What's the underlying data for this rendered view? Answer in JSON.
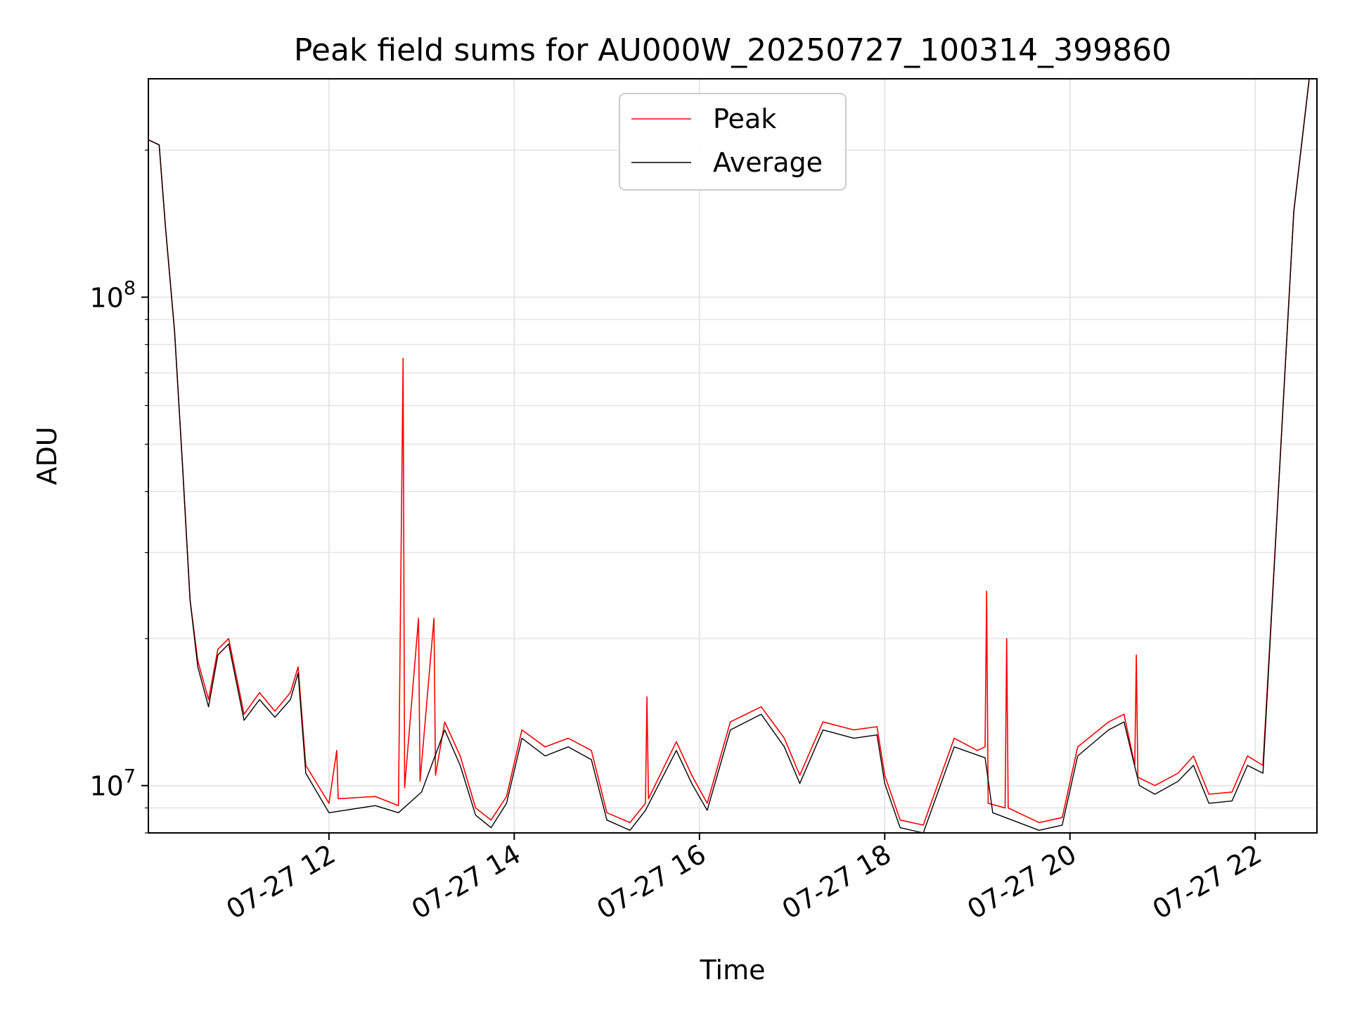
{
  "chart_data": {
    "type": "line",
    "title": "Peak field sums for AU000W_20250727_100314_399860",
    "xlabel": "Time",
    "ylabel": "ADU",
    "yscale": "log",
    "xlim": [
      "2025-07-27 10:03",
      "2025-07-27 22:40"
    ],
    "ylim": [
      8000000,
      280000000
    ],
    "x_ticks": [
      {
        "t": "2025-07-27 12:00",
        "label": "07-27 12"
      },
      {
        "t": "2025-07-27 14:00",
        "label": "07-27 14"
      },
      {
        "t": "2025-07-27 16:00",
        "label": "07-27 16"
      },
      {
        "t": "2025-07-27 18:00",
        "label": "07-27 18"
      },
      {
        "t": "2025-07-27 20:00",
        "label": "07-27 20"
      },
      {
        "t": "2025-07-27 22:00",
        "label": "07-27 22"
      }
    ],
    "y_ticks": [
      {
        "value": 10000000,
        "base": "10",
        "exp": "7"
      },
      {
        "value": 100000000,
        "base": "10",
        "exp": "8"
      }
    ],
    "grid": true,
    "legend_position": "top-center",
    "colors": {
      "peak": "#ff0000",
      "average": "#000000"
    },
    "series": [
      {
        "name": "Peak",
        "color": "#ff0000",
        "points": [
          [
            "2025-07-27 10:03",
            210000000
          ],
          [
            "2025-07-27 10:10",
            205000000
          ],
          [
            "2025-07-27 10:14",
            140000000
          ],
          [
            "2025-07-27 10:20",
            85000000
          ],
          [
            "2025-07-27 10:25",
            46000000
          ],
          [
            "2025-07-27 10:30",
            24000000
          ],
          [
            "2025-07-27 10:35",
            18000000
          ],
          [
            "2025-07-27 10:42",
            15000000
          ],
          [
            "2025-07-27 10:48",
            19000000
          ],
          [
            "2025-07-27 10:55",
            20000000
          ],
          [
            "2025-07-27 11:05",
            14000000
          ],
          [
            "2025-07-27 11:15",
            15500000
          ],
          [
            "2025-07-27 11:25",
            14200000
          ],
          [
            "2025-07-27 11:35",
            15500000
          ],
          [
            "2025-07-27 11:40",
            17500000
          ],
          [
            "2025-07-27 11:45",
            11000000
          ],
          [
            "2025-07-27 12:00",
            9200000
          ],
          [
            "2025-07-27 12:05",
            11800000
          ],
          [
            "2025-07-27 12:06",
            9400000
          ],
          [
            "2025-07-27 12:30",
            9500000
          ],
          [
            "2025-07-27 12:45",
            9100000
          ],
          [
            "2025-07-27 12:48",
            75000000
          ],
          [
            "2025-07-27 12:49",
            9900000
          ],
          [
            "2025-07-27 12:58",
            22000000
          ],
          [
            "2025-07-27 12:59",
            10200000
          ],
          [
            "2025-07-27 13:08",
            22000000
          ],
          [
            "2025-07-27 13:09",
            10500000
          ],
          [
            "2025-07-27 13:15",
            13500000
          ],
          [
            "2025-07-27 13:25",
            11500000
          ],
          [
            "2025-07-27 13:35",
            9000000
          ],
          [
            "2025-07-27 13:45",
            8500000
          ],
          [
            "2025-07-27 13:55",
            9500000
          ],
          [
            "2025-07-27 14:05",
            13000000
          ],
          [
            "2025-07-27 14:20",
            12000000
          ],
          [
            "2025-07-27 14:35",
            12500000
          ],
          [
            "2025-07-27 14:50",
            11800000
          ],
          [
            "2025-07-27 15:00",
            8800000
          ],
          [
            "2025-07-27 15:15",
            8400000
          ],
          [
            "2025-07-27 15:25",
            9200000
          ],
          [
            "2025-07-27 15:26",
            15200000
          ],
          [
            "2025-07-27 15:27",
            9400000
          ],
          [
            "2025-07-27 15:45",
            12300000
          ],
          [
            "2025-07-27 15:55",
            10500000
          ],
          [
            "2025-07-27 16:05",
            9200000
          ],
          [
            "2025-07-27 16:20",
            13500000
          ],
          [
            "2025-07-27 16:40",
            14500000
          ],
          [
            "2025-07-27 16:55",
            12500000
          ],
          [
            "2025-07-27 17:05",
            10500000
          ],
          [
            "2025-07-27 17:20",
            13500000
          ],
          [
            "2025-07-27 17:40",
            13000000
          ],
          [
            "2025-07-27 17:55",
            13200000
          ],
          [
            "2025-07-27 18:00",
            10500000
          ],
          [
            "2025-07-27 18:10",
            8500000
          ],
          [
            "2025-07-27 18:25",
            8300000
          ],
          [
            "2025-07-27 18:45",
            12500000
          ],
          [
            "2025-07-27 19:00",
            11800000
          ],
          [
            "2025-07-27 19:05",
            12000000
          ],
          [
            "2025-07-27 19:06",
            25000000
          ],
          [
            "2025-07-27 19:07",
            9200000
          ],
          [
            "2025-07-27 19:18",
            9000000
          ],
          [
            "2025-07-27 19:19",
            20000000
          ],
          [
            "2025-07-27 19:20",
            9000000
          ],
          [
            "2025-07-27 19:40",
            8400000
          ],
          [
            "2025-07-27 19:55",
            8600000
          ],
          [
            "2025-07-27 20:05",
            12000000
          ],
          [
            "2025-07-27 20:25",
            13500000
          ],
          [
            "2025-07-27 20:35",
            14000000
          ],
          [
            "2025-07-27 20:42",
            11000000
          ],
          [
            "2025-07-27 20:43",
            18500000
          ],
          [
            "2025-07-27 20:44",
            10400000
          ],
          [
            "2025-07-27 20:55",
            10000000
          ],
          [
            "2025-07-27 21:10",
            10600000
          ],
          [
            "2025-07-27 21:20",
            11500000
          ],
          [
            "2025-07-27 21:30",
            9600000
          ],
          [
            "2025-07-27 21:45",
            9700000
          ],
          [
            "2025-07-27 21:55",
            11500000
          ],
          [
            "2025-07-27 22:05",
            11000000
          ],
          [
            "2025-07-27 22:15",
            40000000
          ],
          [
            "2025-07-27 22:25",
            150000000
          ],
          [
            "2025-07-27 22:35",
            280000000
          ]
        ]
      },
      {
        "name": "Average",
        "color": "#000000",
        "points": [
          [
            "2025-07-27 10:03",
            210000000
          ],
          [
            "2025-07-27 10:10",
            205000000
          ],
          [
            "2025-07-27 10:14",
            140000000
          ],
          [
            "2025-07-27 10:20",
            85000000
          ],
          [
            "2025-07-27 10:25",
            46000000
          ],
          [
            "2025-07-27 10:30",
            24000000
          ],
          [
            "2025-07-27 10:35",
            17500000
          ],
          [
            "2025-07-27 10:42",
            14500000
          ],
          [
            "2025-07-27 10:48",
            18500000
          ],
          [
            "2025-07-27 10:55",
            19500000
          ],
          [
            "2025-07-27 11:05",
            13600000
          ],
          [
            "2025-07-27 11:15",
            15000000
          ],
          [
            "2025-07-27 11:25",
            13800000
          ],
          [
            "2025-07-27 11:35",
            15000000
          ],
          [
            "2025-07-27 11:40",
            17000000
          ],
          [
            "2025-07-27 11:45",
            10600000
          ],
          [
            "2025-07-27 12:00",
            8800000
          ],
          [
            "2025-07-27 12:30",
            9100000
          ],
          [
            "2025-07-27 12:45",
            8800000
          ],
          [
            "2025-07-27 13:00",
            9700000
          ],
          [
            "2025-07-27 13:15",
            13000000
          ],
          [
            "2025-07-27 13:25",
            11000000
          ],
          [
            "2025-07-27 13:35",
            8700000
          ],
          [
            "2025-07-27 13:45",
            8200000
          ],
          [
            "2025-07-27 13:55",
            9200000
          ],
          [
            "2025-07-27 14:05",
            12500000
          ],
          [
            "2025-07-27 14:20",
            11500000
          ],
          [
            "2025-07-27 14:35",
            12000000
          ],
          [
            "2025-07-27 14:50",
            11300000
          ],
          [
            "2025-07-27 15:00",
            8500000
          ],
          [
            "2025-07-27 15:15",
            8100000
          ],
          [
            "2025-07-27 15:25",
            8900000
          ],
          [
            "2025-07-27 15:45",
            11800000
          ],
          [
            "2025-07-27 15:55",
            10100000
          ],
          [
            "2025-07-27 16:05",
            8900000
          ],
          [
            "2025-07-27 16:20",
            13000000
          ],
          [
            "2025-07-27 16:40",
            14000000
          ],
          [
            "2025-07-27 16:55",
            12000000
          ],
          [
            "2025-07-27 17:05",
            10100000
          ],
          [
            "2025-07-27 17:20",
            13000000
          ],
          [
            "2025-07-27 17:40",
            12500000
          ],
          [
            "2025-07-27 17:55",
            12700000
          ],
          [
            "2025-07-27 18:00",
            10100000
          ],
          [
            "2025-07-27 18:10",
            8200000
          ],
          [
            "2025-07-27 18:25",
            8000000
          ],
          [
            "2025-07-27 18:45",
            12000000
          ],
          [
            "2025-07-27 19:05",
            11400000
          ],
          [
            "2025-07-27 19:10",
            8800000
          ],
          [
            "2025-07-27 19:40",
            8100000
          ],
          [
            "2025-07-27 19:55",
            8300000
          ],
          [
            "2025-07-27 20:05",
            11500000
          ],
          [
            "2025-07-27 20:25",
            13000000
          ],
          [
            "2025-07-27 20:35",
            13500000
          ],
          [
            "2025-07-27 20:45",
            10000000
          ],
          [
            "2025-07-27 20:55",
            9600000
          ],
          [
            "2025-07-27 21:10",
            10200000
          ],
          [
            "2025-07-27 21:20",
            11000000
          ],
          [
            "2025-07-27 21:30",
            9200000
          ],
          [
            "2025-07-27 21:45",
            9300000
          ],
          [
            "2025-07-27 21:55",
            11000000
          ],
          [
            "2025-07-27 22:05",
            10600000
          ],
          [
            "2025-07-27 22:15",
            40000000
          ],
          [
            "2025-07-27 22:25",
            150000000
          ],
          [
            "2025-07-27 22:35",
            280000000
          ]
        ]
      }
    ]
  }
}
